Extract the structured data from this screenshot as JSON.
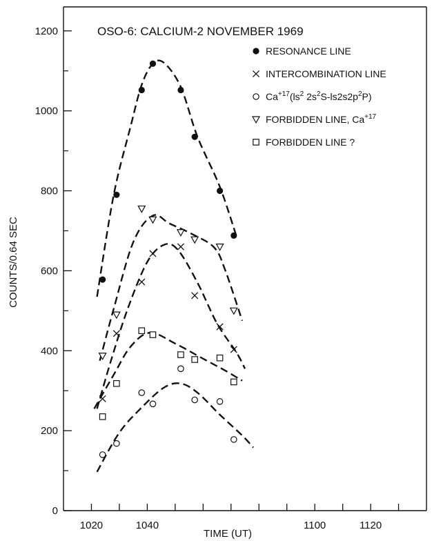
{
  "chart_data": {
    "type": "scatter",
    "title": "OSO-6: CALCIUM-2 NOVEMBER 1969",
    "xlabel": "TIME (UT)",
    "ylabel": "COUNTS/0.64 SEC",
    "xlim": [
      1010,
      1140
    ],
    "ylim": [
      0,
      1260
    ],
    "x_tick_values": [
      1020,
      1040,
      1100,
      1120
    ],
    "x_tick_labels": [
      "1020",
      "1040",
      "1100",
      "1120"
    ],
    "y_tick_values": [
      0,
      200,
      400,
      600,
      800,
      1000,
      1200
    ],
    "y_tick_labels": [
      "0",
      "200",
      "400",
      "600",
      "800",
      "1000",
      "1200"
    ],
    "grid": false,
    "legend_position": "top-right",
    "series": [
      {
        "name": "RESONANCE LINE",
        "marker": "filled-circle",
        "points": [
          [
            1024,
            578
          ],
          [
            1029,
            790
          ],
          [
            1038,
            1052
          ],
          [
            1042,
            1118
          ],
          [
            1052,
            1052
          ],
          [
            1057,
            935
          ],
          [
            1066,
            800
          ],
          [
            1071,
            688
          ]
        ],
        "fit": [
          [
            1022,
            535
          ],
          [
            1028,
            790
          ],
          [
            1034,
            960
          ],
          [
            1038,
            1065
          ],
          [
            1042,
            1118
          ],
          [
            1046,
            1120
          ],
          [
            1052,
            1060
          ],
          [
            1058,
            935
          ],
          [
            1066,
            810
          ],
          [
            1072,
            685
          ]
        ]
      },
      {
        "name": "INTERCOMBINATION LINE",
        "marker": "x",
        "points": [
          [
            1024,
            280
          ],
          [
            1029,
            443
          ],
          [
            1038,
            572
          ],
          [
            1042,
            643
          ],
          [
            1052,
            660
          ],
          [
            1057,
            538
          ],
          [
            1066,
            460
          ],
          [
            1071,
            403
          ]
        ],
        "fit": [
          [
            1022,
            255
          ],
          [
            1027,
            375
          ],
          [
            1033,
            505
          ],
          [
            1040,
            622
          ],
          [
            1046,
            665
          ],
          [
            1051,
            652
          ],
          [
            1058,
            570
          ],
          [
            1065,
            468
          ],
          [
            1072,
            395
          ],
          [
            1075,
            355
          ]
        ]
      },
      {
        "name": "Ca+17(1s2 2s2S-1s2s2p2P)",
        "marker": "open-circle",
        "points": [
          [
            1024,
            140
          ],
          [
            1029,
            168
          ],
          [
            1038,
            295
          ],
          [
            1042,
            267
          ],
          [
            1052,
            355
          ],
          [
            1057,
            277
          ],
          [
            1066,
            273
          ],
          [
            1071,
            178
          ]
        ],
        "fit": [
          [
            1022,
            97
          ],
          [
            1030,
            195
          ],
          [
            1038,
            258
          ],
          [
            1046,
            308
          ],
          [
            1052,
            318
          ],
          [
            1058,
            295
          ],
          [
            1066,
            240
          ],
          [
            1074,
            188
          ],
          [
            1078,
            158
          ]
        ]
      },
      {
        "name": "FORBIDDEN LINE, Ca+17",
        "marker": "open-triangle-down",
        "points": [
          [
            1024,
            387
          ],
          [
            1029,
            490
          ],
          [
            1038,
            755
          ],
          [
            1042,
            728
          ],
          [
            1052,
            696
          ],
          [
            1057,
            678
          ],
          [
            1066,
            660
          ],
          [
            1071,
            500
          ]
        ],
        "fit": [
          [
            1023,
            375
          ],
          [
            1028,
            505
          ],
          [
            1035,
            672
          ],
          [
            1042,
            738
          ],
          [
            1048,
            718
          ],
          [
            1056,
            692
          ],
          [
            1064,
            658
          ],
          [
            1068,
            600
          ],
          [
            1074,
            475
          ]
        ]
      },
      {
        "name": "FORBIDDEN LINE ?",
        "marker": "open-square",
        "points": [
          [
            1024,
            235
          ],
          [
            1029,
            318
          ],
          [
            1038,
            450
          ],
          [
            1042,
            440
          ],
          [
            1052,
            390
          ],
          [
            1057,
            378
          ],
          [
            1066,
            382
          ],
          [
            1071,
            322
          ]
        ],
        "fit": [
          [
            1021,
            255
          ],
          [
            1028,
            340
          ],
          [
            1034,
            410
          ],
          [
            1041,
            445
          ],
          [
            1050,
            418
          ],
          [
            1060,
            380
          ],
          [
            1068,
            350
          ],
          [
            1074,
            325
          ]
        ]
      }
    ]
  },
  "legend": {
    "items": [
      {
        "marker": "filled-circle",
        "parts": [
          {
            "t": "RESONANCE LINE"
          }
        ]
      },
      {
        "marker": "x",
        "parts": [
          {
            "t": "INTERCOMBINATION LINE"
          }
        ]
      },
      {
        "marker": "open-circle",
        "parts": [
          {
            "t": "Ca"
          },
          {
            "t": "+17",
            "sup": true
          },
          {
            "t": "(ls"
          },
          {
            "t": "2",
            "sup": true
          },
          {
            "t": " 2s"
          },
          {
            "t": "2",
            "sup": true
          },
          {
            "t": "S-ls2s2p"
          },
          {
            "t": "2",
            "sup": true
          },
          {
            "t": "P)"
          }
        ]
      },
      {
        "marker": "open-triangle-down",
        "parts": [
          {
            "t": "FORBIDDEN LINE, Ca"
          },
          {
            "t": "+17",
            "sup": true
          }
        ]
      },
      {
        "marker": "open-square",
        "parts": [
          {
            "t": "FORBIDDEN LINE ?"
          }
        ]
      }
    ]
  }
}
